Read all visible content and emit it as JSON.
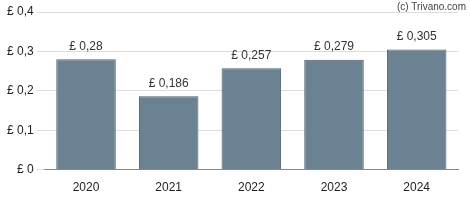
{
  "chart_data": {
    "type": "bar",
    "categories": [
      "2020",
      "2021",
      "2022",
      "2023",
      "2024"
    ],
    "values": [
      0.28,
      0.186,
      0.257,
      0.279,
      0.305
    ],
    "value_labels": [
      "£ 0,28",
      "£ 0,186",
      "£ 0,257",
      "£ 0,279",
      "£ 0,305"
    ],
    "data_labels": true,
    "color": "#6b8293",
    "ylim": [
      0,
      0.4
    ],
    "yticks": [
      {
        "value": 0,
        "label": "£ 0"
      },
      {
        "value": 0.1,
        "label": "£ 0,1"
      },
      {
        "value": 0.2,
        "label": "£ 0,2"
      },
      {
        "value": 0.3,
        "label": "£ 0,3"
      },
      {
        "value": 0.4,
        "label": "£ 0,4"
      }
    ],
    "grid": true,
    "annotations": [
      "(c) Trivano.com"
    ]
  }
}
